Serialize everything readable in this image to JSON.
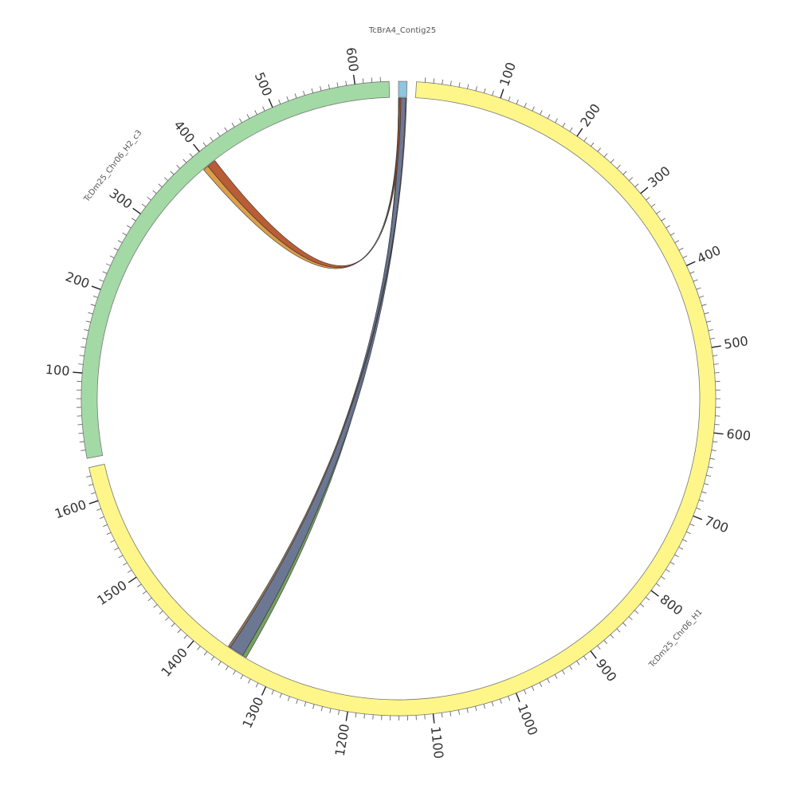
{
  "chart_data": {
    "type": "circos",
    "segments": [
      {
        "name": "TcBrA4_Contig25",
        "length": 10,
        "color": "#8ec6e0"
      },
      {
        "name": "TcDm25_Chr06_H1",
        "length": 1640,
        "color": "#fff68a",
        "ticks": [
          100,
          200,
          300,
          400,
          500,
          600,
          700,
          800,
          900,
          1000,
          1100,
          1200,
          1300,
          1400,
          1500,
          1600
        ]
      },
      {
        "name": "TcDm25_Chr06_H2_c3",
        "length": 640,
        "color": "#a3d9a5",
        "ticks": [
          100,
          200,
          300,
          400,
          500,
          600
        ]
      }
    ],
    "minor_tick_interval": 10,
    "links": [
      {
        "source": "TcBrA4_Contig25",
        "source_range": [
          0,
          1.5
        ],
        "target": "TcDm25_Chr06_H1",
        "target_range": [
          1337,
          1342
        ],
        "color": "#6a9a50"
      },
      {
        "source": "TcBrA4_Contig25",
        "source_range": [
          1.5,
          9
        ],
        "target": "TcDm25_Chr06_H1",
        "target_range": [
          1342,
          1360
        ],
        "color": "#5f6b8a"
      },
      {
        "source": "TcBrA4_Contig25",
        "source_range": [
          9,
          10
        ],
        "target": "TcDm25_Chr06_H1",
        "target_range": [
          1360,
          1363
        ],
        "color": "#8a6a50"
      },
      {
        "source": "TcBrA4_Contig25",
        "source_range": [
          0,
          1
        ],
        "target": "TcDm25_Chr06_H2_c3",
        "target_range": [
          390,
          397
        ],
        "color": "#d9963a"
      },
      {
        "source": "TcBrA4_Contig25",
        "source_range": [
          1,
          3
        ],
        "target": "TcDm25_Chr06_H2_c3",
        "target_range": [
          397,
          408
        ],
        "color": "#b34f25"
      }
    ]
  }
}
